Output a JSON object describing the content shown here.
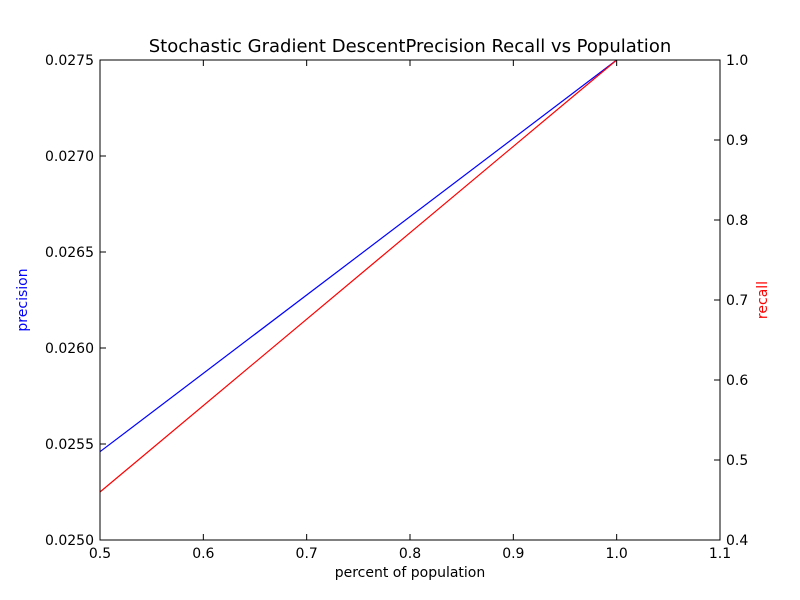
{
  "chart_data": {
    "type": "line",
    "title": "Stochastic Gradient DescentPrecision Recall vs Population",
    "xlabel": "percent of population",
    "ylabel_left": "precision",
    "ylabel_right": "recall",
    "xlim": [
      0.5,
      1.1
    ],
    "ylim_left": [
      0.025,
      0.0275
    ],
    "ylim_right": [
      0.4,
      1.0
    ],
    "x_ticks": [
      "0.5",
      "0.6",
      "0.7",
      "0.8",
      "0.9",
      "1.0",
      "1.1"
    ],
    "y_left_ticks": [
      "0.0250",
      "0.0255",
      "0.0260",
      "0.0265",
      "0.0270",
      "0.0275"
    ],
    "y_right_ticks": [
      "0.4",
      "0.5",
      "0.6",
      "0.7",
      "0.8",
      "0.9",
      "1.0"
    ],
    "grid": false,
    "series": [
      {
        "axis": "left",
        "color": "#0000ff",
        "x": [
          0.5,
          1.0
        ],
        "y": [
          0.02546,
          0.0275
        ]
      },
      {
        "axis": "right",
        "color": "#ff0000",
        "x": [
          0.5,
          1.0
        ],
        "y": [
          0.46,
          1.0
        ]
      }
    ],
    "colors": {
      "left_axis_label": "#0000ff",
      "right_axis_label": "#ff0000",
      "frame": "#000000"
    }
  }
}
